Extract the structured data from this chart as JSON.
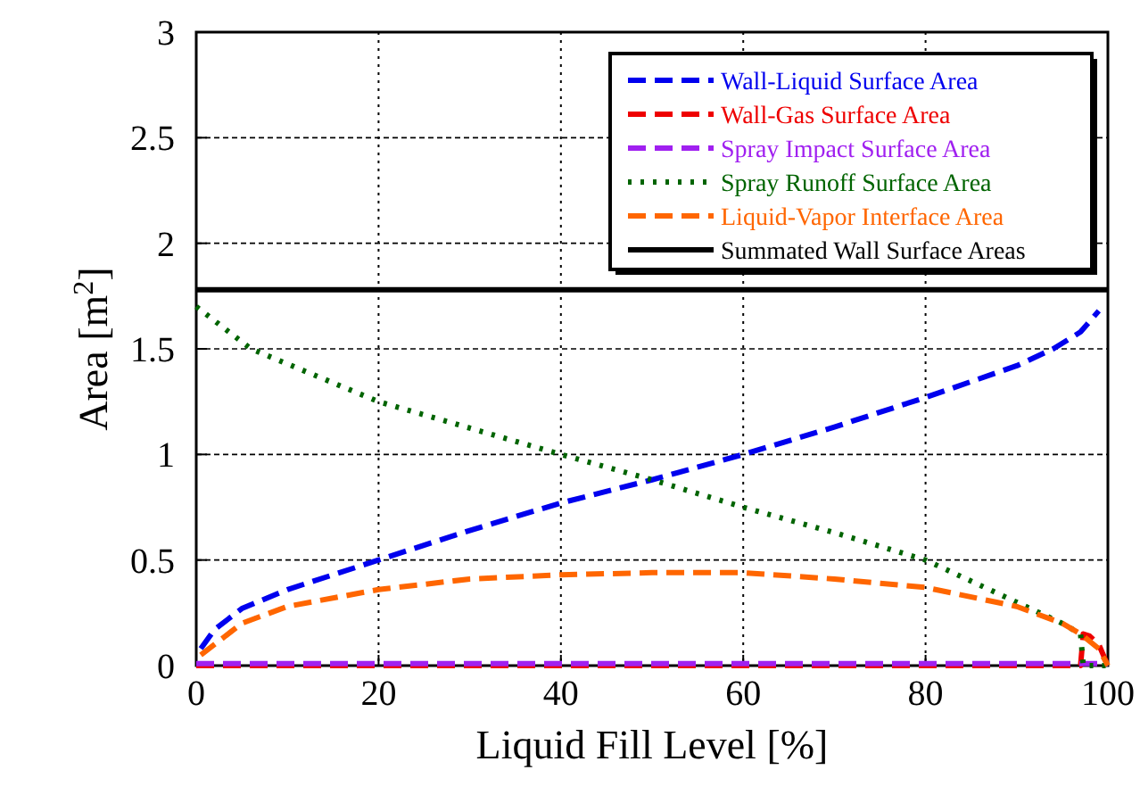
{
  "chart_data": {
    "type": "line",
    "xlabel": "Liquid Fill Level [%]",
    "ylabel": "Area [m$^{2}$]",
    "xlim": [
      0,
      100
    ],
    "ylim": [
      0,
      3
    ],
    "xticks": [
      0,
      20,
      40,
      60,
      80,
      100
    ],
    "yticks": [
      0,
      0.5,
      1,
      1.5,
      2,
      2.5,
      3
    ],
    "grid": true,
    "legend": "top right",
    "x": [
      0.5,
      2,
      5,
      10,
      15,
      20,
      30,
      40,
      50,
      60,
      70,
      80,
      90,
      94,
      97,
      99
    ],
    "series": [
      {
        "name": "Wall-Liquid Surface Area",
        "color": "#0000ee",
        "line_style": "dashed",
        "values": [
          0.08,
          0.17,
          0.27,
          0.36,
          0.43,
          0.5,
          0.64,
          0.77,
          0.88,
          1.0,
          1.13,
          1.27,
          1.42,
          1.5,
          1.58,
          1.68
        ]
      },
      {
        "name": "Wall-Gas Surface Area",
        "color": "#ee0000",
        "line_style": "dashed",
        "x": [
          0,
          20,
          40,
          60,
          80,
          97,
          97.3,
          98,
          99,
          100
        ],
        "values": [
          0,
          0,
          0,
          0,
          0,
          0,
          0.15,
          0.14,
          0.1,
          0
        ]
      },
      {
        "name": "Spray Impact Surface Area",
        "color": "#a020f0",
        "line_style": "dashed",
        "x": [
          0,
          100
        ],
        "values": [
          0.01,
          0.01
        ]
      },
      {
        "name": "Spray Runoff Surface Area",
        "color": "#006400",
        "line_style": "dotted",
        "x": [
          0,
          6,
          20,
          40,
          50,
          60,
          70,
          80,
          90,
          95,
          97,
          97.3,
          100
        ],
        "values": [
          1.7,
          1.5,
          1.25,
          1.0,
          0.88,
          0.75,
          0.63,
          0.5,
          0.3,
          0.2,
          0.15,
          0,
          0
        ]
      },
      {
        "name": "Liquid-Vapor Interface Area",
        "color": "#ff6600",
        "line_style": "dashed",
        "x": [
          0.5,
          5,
          10,
          20,
          30,
          40,
          50,
          60,
          70,
          80,
          90,
          95,
          97,
          99,
          100
        ],
        "values": [
          0.05,
          0.2,
          0.28,
          0.36,
          0.41,
          0.43,
          0.44,
          0.44,
          0.41,
          0.37,
          0.28,
          0.2,
          0.15,
          0.08,
          0
        ]
      },
      {
        "name": "Summated Wall Surface Areas",
        "color": "#000000",
        "line_style": "solid",
        "x": [
          0,
          100
        ],
        "values": [
          1.78,
          1.78
        ]
      }
    ]
  }
}
